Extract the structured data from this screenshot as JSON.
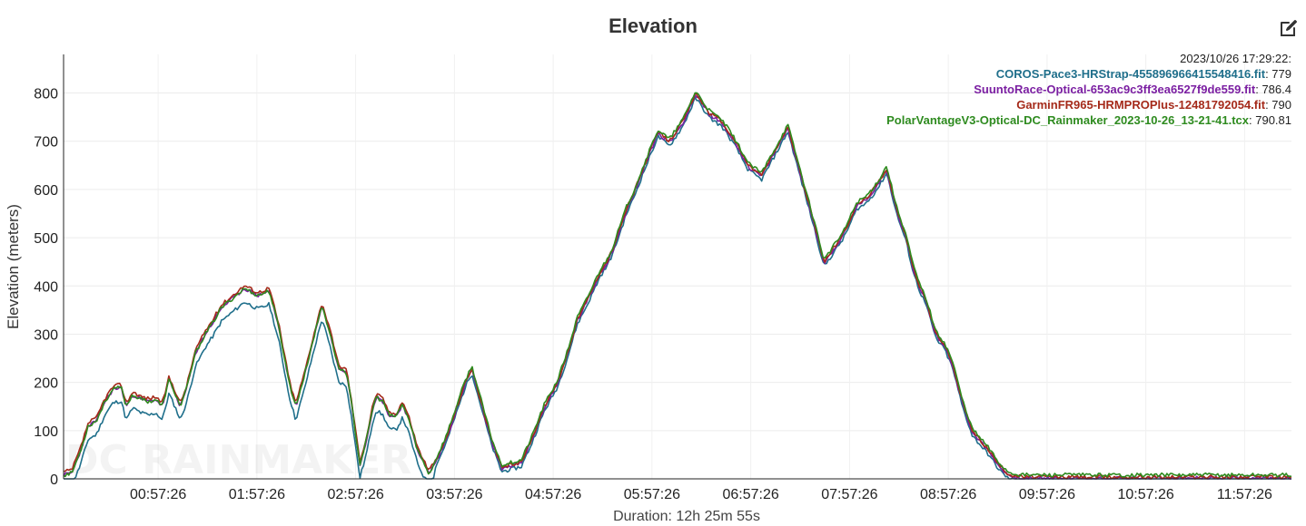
{
  "chart_data": {
    "type": "line",
    "title": "Elevation",
    "xlabel": "Duration: 12h 25m 55s",
    "ylabel": "Elevation (meters)",
    "ylim": [
      0,
      880
    ],
    "xlim_minutes": [
      0,
      745.9
    ],
    "y_ticks": [
      "0",
      "100",
      "200",
      "300",
      "400",
      "500",
      "600",
      "700",
      "800"
    ],
    "x_ticks": [
      "00:57:26",
      "01:57:26",
      "02:57:26",
      "03:57:26",
      "04:57:26",
      "05:57:26",
      "06:57:26",
      "07:57:26",
      "08:57:26",
      "09:57:26",
      "10:57:26",
      "11:57:26"
    ],
    "grid": true,
    "watermark": "DC RAINMAKER",
    "tooltip": {
      "timestamp": "2023/10/26 17:29:22:",
      "entries": [
        {
          "name": "COROS-Pace3-HRStrap-455896966415548416.fit",
          "value": "779"
        },
        {
          "name": "SuuntoRace-Optical-653ac9c3ff3ea6527f9de559.fit",
          "value": "786.4"
        },
        {
          "name": "GarminFR965-HRMPROPlus-12481792054.fit",
          "value": "790"
        },
        {
          "name": "PolarVantageV3-Optical-DC_Rainmaker_2023-10-26_13-21-41.tcx",
          "value": "790.81"
        }
      ]
    },
    "base_profile": {
      "x_minutes": [
        0,
        5,
        10,
        15,
        20,
        25,
        30,
        35,
        38,
        42,
        47,
        52,
        56,
        60,
        64,
        68,
        71,
        75,
        80,
        86,
        90,
        96,
        103,
        110,
        118,
        125,
        131,
        137,
        141,
        146,
        151,
        157,
        162,
        167,
        172,
        176,
        180,
        184,
        188,
        190,
        194,
        198,
        202,
        206,
        210,
        215,
        222,
        228,
        233,
        236,
        239,
        244,
        248,
        252,
        256,
        260,
        266,
        272,
        278,
        284,
        292,
        300,
        306,
        312,
        318,
        322,
        326,
        330,
        334,
        338,
        342,
        346,
        354,
        361,
        368,
        376,
        384,
        392,
        400,
        408,
        416,
        424,
        432,
        440,
        448,
        456,
        462,
        468,
        474,
        478,
        482,
        487,
        492,
        496,
        500,
        506,
        512,
        516,
        520,
        524,
        530,
        535,
        540,
        546,
        552,
        557,
        562,
        568,
        574,
        580,
        586,
        592,
        597,
        602,
        606,
        612,
        618,
        624,
        630,
        636,
        642,
        646,
        652,
        658,
        664,
        670,
        676,
        684,
        692,
        700,
        708,
        716,
        722,
        728,
        732,
        736,
        740,
        744.5
      ],
      "values": [
        8,
        12,
        55,
        110,
        120,
        160,
        185,
        190,
        150,
        175,
        165,
        160,
        165,
        150,
        205,
        175,
        150,
        190,
        260,
        300,
        320,
        355,
        375,
        395,
        380,
        390,
        310,
        200,
        150,
        210,
        280,
        360,
        300,
        230,
        220,
        130,
        30,
        80,
        150,
        170,
        160,
        130,
        130,
        155,
        120,
        60,
        10,
        50,
        90,
        120,
        150,
        200,
        230,
        180,
        130,
        80,
        25,
        30,
        35,
        80,
        150,
        200,
        260,
        330,
        370,
        400,
        430,
        450,
        480,
        520,
        560,
        590,
        660,
        720,
        700,
        740,
        800,
        760,
        740,
        700,
        650,
        630,
        680,
        730,
        630,
        530,
        450,
        480,
        510,
        540,
        570,
        580,
        600,
        620,
        645,
        560,
        500,
        440,
        400,
        370,
        300,
        280,
        240,
        160,
        100,
        80,
        60,
        30,
        10,
        5,
        4,
        4,
        4,
        4,
        4,
        4,
        4,
        4,
        4,
        4,
        4,
        4,
        4,
        4,
        4,
        4,
        4,
        4,
        4,
        4,
        4,
        4,
        4,
        4,
        4,
        4,
        4,
        4
      ]
    },
    "series": [
      {
        "name": "COROS-Pace3-HRStrap-455896966415548416.fit",
        "color": "#1f6f8b",
        "offset": -10,
        "pre_offset": -28,
        "noise": 4
      },
      {
        "name": "SuuntoRace-Optical-653ac9c3ff3ea6527f9de559.fit",
        "color": "#7b1fa2",
        "offset": -3,
        "pre_offset": 0,
        "noise": 4
      },
      {
        "name": "GarminFR965-HRMPROPlus-12481792054.fit",
        "color": "#a52a1a",
        "offset": 0,
        "pre_offset": 6,
        "noise": 4
      },
      {
        "name": "PolarVantageV3-Optical-DC_Rainmaker_2023-10-26_13-21-41.tcx",
        "color": "#2e8b1f",
        "offset": 4,
        "pre_offset": 0,
        "noise": 4
      }
    ]
  }
}
